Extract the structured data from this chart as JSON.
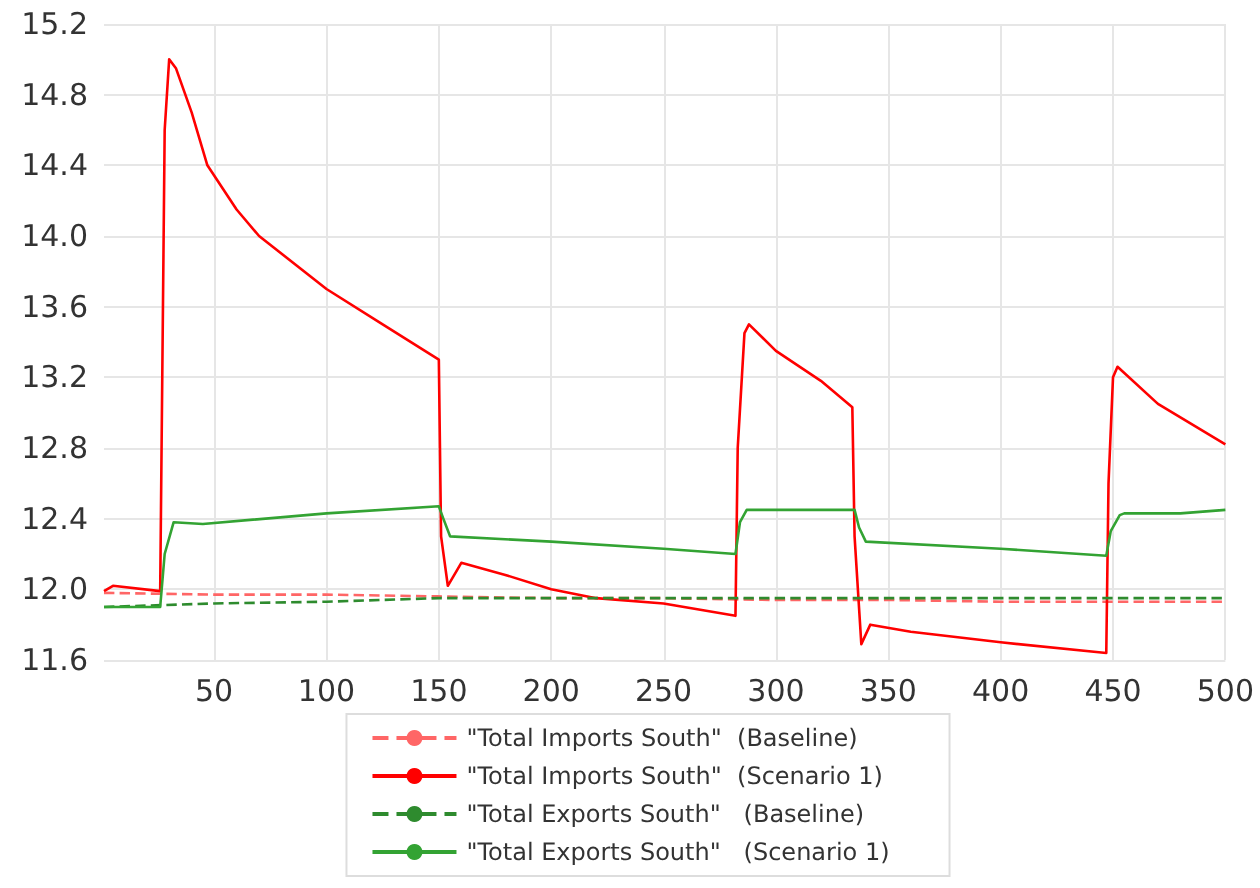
{
  "chart_data": {
    "type": "line",
    "xlim": [
      1,
      500
    ],
    "xticks": [
      50,
      100,
      150,
      200,
      250,
      300,
      350,
      400,
      450,
      500
    ],
    "ylim": [
      11.6,
      15.2
    ],
    "yticks": [
      11.6,
      {
        "value": 12,
        "label": "12.0"
      },
      12.4,
      12.8,
      13.2,
      13.6,
      {
        "value": 14,
        "label": "14.0"
      },
      14.4,
      14.8,
      15.2
    ],
    "grid": true,
    "legend": "bottom",
    "marker": "none",
    "series": [
      {
        "name": "\"Total Imports South\"  (Baseline)",
        "color": "#ff6666",
        "line_style": "dashed",
        "x": [
          1,
          50,
          100,
          150,
          200,
          250,
          300,
          350,
          400,
          450,
          500
        ],
        "values": [
          11.98,
          11.97,
          11.97,
          11.96,
          11.95,
          11.95,
          11.94,
          11.94,
          11.93,
          11.93,
          11.93
        ]
      },
      {
        "name": "\"Total Imports South\"  (Scenario 1)",
        "color": "#ff0000",
        "line_style": "solid",
        "x": [
          1,
          5,
          26,
          28,
          30,
          33,
          40,
          47,
          60,
          70,
          100,
          125,
          150,
          151,
          154,
          160,
          180,
          200,
          220,
          250,
          282,
          283,
          286,
          288,
          300,
          320,
          334,
          335,
          338,
          342,
          360,
          400,
          447,
          448,
          450,
          452,
          470,
          500
        ],
        "values": [
          11.99,
          12.02,
          11.99,
          14.6,
          15.0,
          14.95,
          14.7,
          14.4,
          14.15,
          14.0,
          13.7,
          13.5,
          13.3,
          12.3,
          12.02,
          12.15,
          12.08,
          12.0,
          11.95,
          11.92,
          11.85,
          12.8,
          13.45,
          13.5,
          13.35,
          13.18,
          13.03,
          12.3,
          11.69,
          11.8,
          11.76,
          11.7,
          11.64,
          12.6,
          13.2,
          13.26,
          13.05,
          12.82
        ]
      },
      {
        "name": "\"Total Exports South\"   (Baseline)",
        "color": "#2e8b2e",
        "line_style": "dashed",
        "x": [
          1,
          50,
          100,
          150,
          200,
          300,
          400,
          500
        ],
        "values": [
          11.9,
          11.92,
          11.93,
          11.95,
          11.95,
          11.95,
          11.95,
          11.95
        ]
      },
      {
        "name": "\"Total Exports South\"   (Scenario 1)",
        "color": "#33a333",
        "line_style": "solid",
        "x": [
          1,
          26,
          28,
          32,
          45,
          100,
          150,
          152,
          155,
          200,
          250,
          282,
          284,
          287,
          335,
          337,
          340,
          400,
          447,
          449,
          453,
          455,
          480,
          500
        ],
        "values": [
          11.9,
          11.9,
          12.2,
          12.38,
          12.37,
          12.43,
          12.47,
          12.4,
          12.3,
          12.27,
          12.23,
          12.2,
          12.38,
          12.45,
          12.45,
          12.35,
          12.27,
          12.23,
          12.19,
          12.33,
          12.42,
          12.43,
          12.43,
          12.45
        ]
      }
    ]
  }
}
